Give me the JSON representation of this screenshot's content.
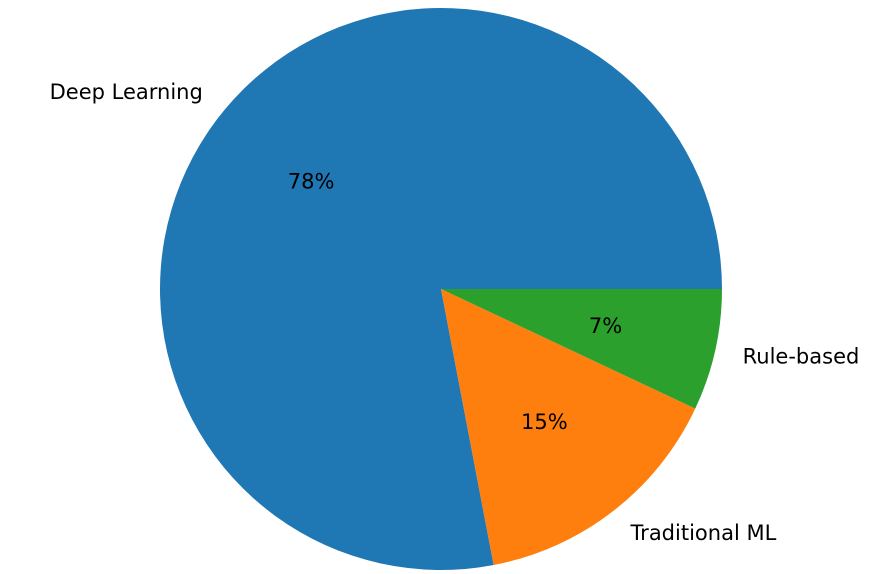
{
  "chart_data": {
    "type": "pie",
    "categories": [
      "Deep Learning",
      "Traditional ML",
      "Rule-based"
    ],
    "values": [
      78,
      15,
      7
    ],
    "percent_labels": [
      "78%",
      "15%",
      "7%"
    ],
    "colors": [
      "#1f77b4",
      "#ff7f0e",
      "#2ca02c"
    ],
    "start_angle_deg": 0,
    "direction": "counterclockwise"
  }
}
